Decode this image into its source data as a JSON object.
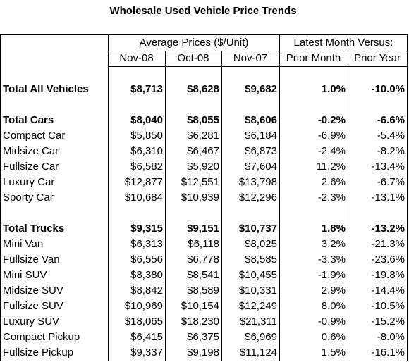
{
  "title": "Wholesale Used Vehicle Price Trends",
  "header": {
    "group_prices": "Average Prices ($/Unit)",
    "group_latest": "Latest Month Versus:",
    "columns": [
      "Nov-08",
      "Oct-08",
      "Nov-07",
      "Prior Month",
      "Prior Year"
    ]
  },
  "total_all": [
    "Total All Vehicles",
    "$8,713",
    "$8,628",
    "$9,682",
    "1.0%",
    "-10.0%"
  ],
  "groups": [
    {
      "total": [
        "Total Cars",
        "$8,040",
        "$8,055",
        "$8,606",
        "-0.2%",
        "-6.6%"
      ],
      "rows": [
        [
          "Compact Car",
          "$5,850",
          "$6,281",
          "$6,184",
          "-6.9%",
          "-5.4%"
        ],
        [
          "Midsize Car",
          "$6,310",
          "$6,467",
          "$6,873",
          "-2.4%",
          "-8.2%"
        ],
        [
          "Fullsize Car",
          "$6,582",
          "$5,920",
          "$7,604",
          "11.2%",
          "-13.4%"
        ],
        [
          "Luxury Car",
          "$12,877",
          "$12,551",
          "$13,798",
          "2.6%",
          "-6.7%"
        ],
        [
          "Sporty Car",
          "$10,684",
          "$10,939",
          "$12,296",
          "-2.3%",
          "-13.1%"
        ]
      ]
    },
    {
      "total": [
        "Total Trucks",
        "$9,315",
        "$9,151",
        "$10,737",
        "1.8%",
        "-13.2%"
      ],
      "rows": [
        [
          "Mini Van",
          "$6,313",
          "$6,118",
          "$8,025",
          "3.2%",
          "-21.3%"
        ],
        [
          "Fullsize Van",
          "$6,556",
          "$6,778",
          "$8,585",
          "-3.3%",
          "-23.6%"
        ],
        [
          "Mini SUV",
          "$8,380",
          "$8,541",
          "$10,455",
          "-1.9%",
          "-19.8%"
        ],
        [
          "Midsize SUV",
          "$8,842",
          "$8,589",
          "$10,331",
          "2.9%",
          "-14.4%"
        ],
        [
          "Fullsize SUV",
          "$10,969",
          "$10,154",
          "$12,249",
          "8.0%",
          "-10.5%"
        ],
        [
          "Luxury SUV",
          "$18,065",
          "$18,230",
          "$21,311",
          "-0.9%",
          "-15.2%"
        ],
        [
          "Compact Pickup",
          "$6,415",
          "$6,375",
          "$6,969",
          "0.6%",
          "-8.0%"
        ],
        [
          "Fullsize Pickup",
          "$9,337",
          "$9,198",
          "$11,124",
          "1.5%",
          "-16.1%"
        ]
      ]
    }
  ]
}
